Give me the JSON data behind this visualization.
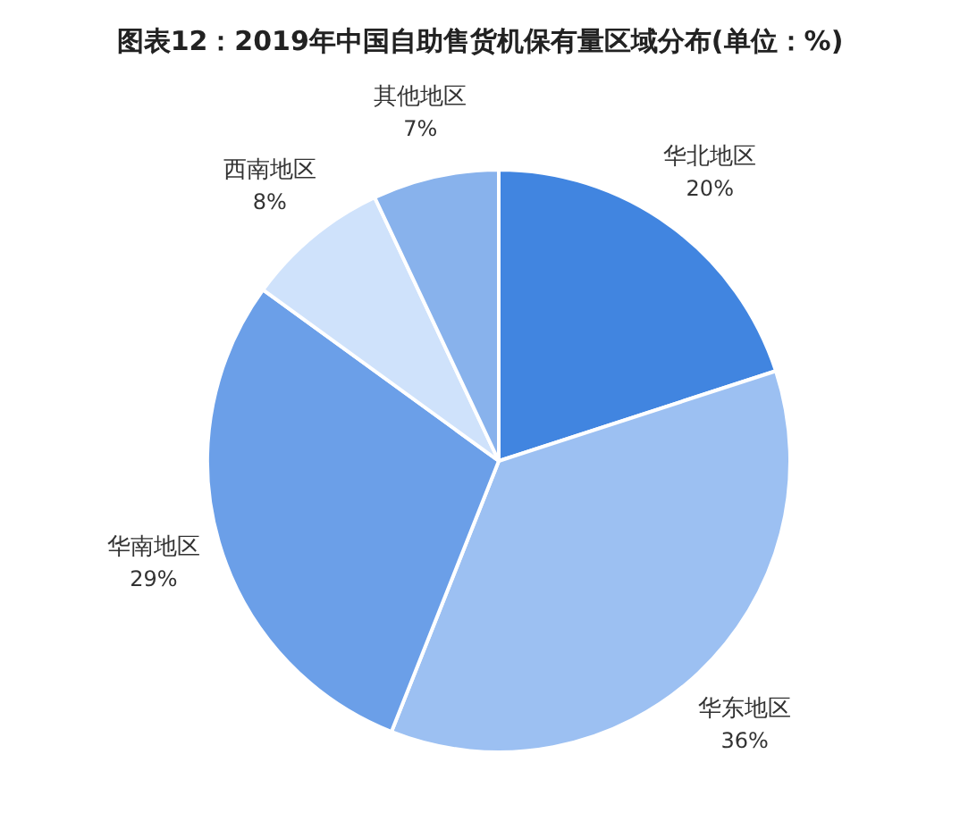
{
  "chart_data": {
    "type": "pie",
    "title": "图表12：2019年中国自助售货机保有量区域分布(单位：%)",
    "categories": [
      "华北地区",
      "华东地区",
      "华南地区",
      "西南地区",
      "其他地区"
    ],
    "values": [
      20,
      36,
      29,
      8,
      7
    ],
    "value_labels": [
      "20%",
      "36%",
      "29%",
      "8%",
      "7%"
    ],
    "colors": [
      "#4185e0",
      "#9cc0f2",
      "#6b9fe8",
      "#cfe2fb",
      "#88b2ec"
    ]
  }
}
